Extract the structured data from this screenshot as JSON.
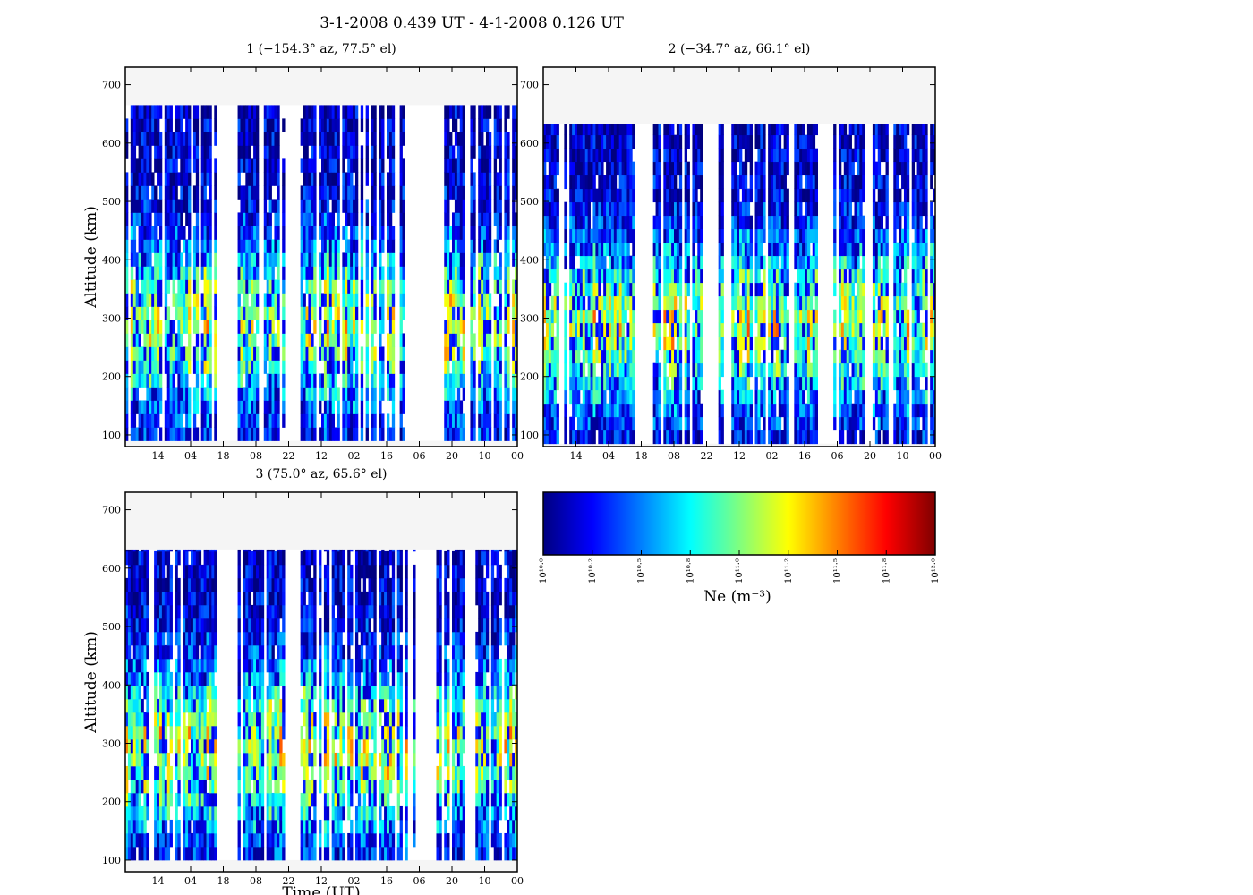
{
  "figure": {
    "title": "3-1-2008 0.439 UT - 4-1-2008 0.126 UT"
  },
  "colors": {
    "missing": "#f5f5f5",
    "colormap": [
      "#00007f",
      "#0000ff",
      "#007fff",
      "#00ffff",
      "#7fff7f",
      "#ffff00",
      "#ff7f00",
      "#ff0000",
      "#7f0000"
    ]
  },
  "colorbar": {
    "label": "Ne (m⁻³)",
    "min_exponent": 10.0,
    "max_exponent": 12.0,
    "ticks": [
      "10¹⁰·⁰",
      "10¹⁰·²",
      "10¹⁰·⁵",
      "10¹⁰·⁸",
      "10¹¹·⁰",
      "10¹¹·²",
      "10¹¹·⁵",
      "10¹¹·⁸",
      "10¹²·⁰"
    ]
  },
  "chart_data": [
    {
      "type": "heatmap",
      "title": "1 (−154.3° az, 77.5° el)",
      "xlabel": "",
      "ylabel": "Altitude (km)",
      "x_ticks": [
        "14",
        "04",
        "18",
        "08",
        "22",
        "12",
        "02",
        "16",
        "06",
        "20",
        "10",
        "00"
      ],
      "y_ticks": [
        100,
        200,
        300,
        400,
        500,
        600,
        700
      ],
      "ylim": [
        80,
        730
      ],
      "data_top_km": 665,
      "data_bottom_km": 90,
      "gaps": [
        [
          0.235,
          0.285
        ],
        [
          0.405,
          0.445
        ],
        [
          0.715,
          0.815
        ],
        [
          0.87,
          0.895
        ]
      ],
      "seed": 11
    },
    {
      "type": "heatmap",
      "title": "2 (−34.7° az, 66.1° el)",
      "xlabel": "",
      "ylabel": "",
      "x_ticks": [
        "14",
        "04",
        "18",
        "08",
        "22",
        "12",
        "02",
        "16",
        "06",
        "20",
        "10",
        "00"
      ],
      "y_ticks": [
        100,
        200,
        300,
        400,
        500,
        600,
        700
      ],
      "ylim": [
        80,
        730
      ],
      "data_top_km": 632,
      "data_bottom_km": 85,
      "gaps": [
        [
          0.235,
          0.285
        ],
        [
          0.405,
          0.48
        ],
        [
          0.705,
          0.745
        ],
        [
          0.82,
          0.84
        ],
        [
          0.88,
          0.895
        ]
      ],
      "seed": 23
    },
    {
      "type": "heatmap",
      "title": "3 (75.0° az, 65.6° el)",
      "xlabel": "Time (UT)",
      "ylabel": "Altitude (km)",
      "x_ticks": [
        "14",
        "04",
        "18",
        "08",
        "22",
        "12",
        "02",
        "16",
        "06",
        "20",
        "10",
        "00"
      ],
      "y_ticks": [
        100,
        200,
        300,
        400,
        500,
        600,
        700
      ],
      "ylim": [
        80,
        730
      ],
      "data_top_km": 632,
      "data_bottom_km": 100,
      "gaps": [
        [
          0.235,
          0.285
        ],
        [
          0.405,
          0.445
        ],
        [
          0.72,
          0.81
        ],
        [
          0.87,
          0.895
        ]
      ],
      "seed": 37
    }
  ]
}
